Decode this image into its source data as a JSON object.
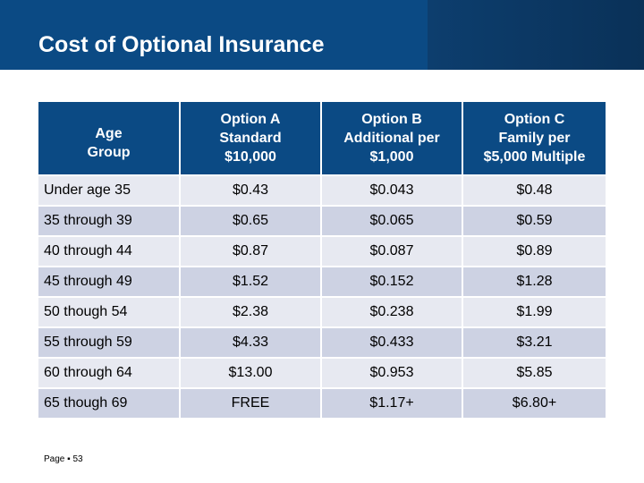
{
  "slide": {
    "title": "Cost of Optional Insurance",
    "page_label": "Page ▪ 53"
  },
  "table": {
    "headers": [
      {
        "lines": [
          "Age",
          "Group"
        ]
      },
      {
        "lines": [
          "Option A",
          "Standard",
          "$10,000"
        ]
      },
      {
        "lines": [
          "Option B",
          "Additional per",
          "$1,000"
        ]
      },
      {
        "lines": [
          "Option C",
          "Family per",
          "$5,000 Multiple"
        ]
      }
    ],
    "rows": [
      {
        "age": "Under age 35",
        "a": "$0.43",
        "b": "$0.043",
        "c": "$0.48"
      },
      {
        "age": "35 through 39",
        "a": "$0.65",
        "b": "$0.065",
        "c": "$0.59"
      },
      {
        "age": "40 through 44",
        "a": "$0.87",
        "b": "$0.087",
        "c": "$0.89"
      },
      {
        "age": "45 through 49",
        "a": "$1.52",
        "b": "$0.152",
        "c": "$1.28"
      },
      {
        "age": "50 though 54",
        "a": "$2.38",
        "b": "$0.238",
        "c": "$1.99"
      },
      {
        "age": "55 through 59",
        "a": "$4.33",
        "b": "$0.433",
        "c": "$3.21"
      },
      {
        "age": "60 through 64",
        "a": "$13.00",
        "b": "$0.953",
        "c": "$5.85"
      },
      {
        "age": "65 though 69",
        "a": "FREE",
        "b": "$1.17+",
        "c": "$6.80+"
      }
    ]
  },
  "colors": {
    "banner": "#0b4a84",
    "header_fill": "#0b4a84",
    "row_light": "#e7e9f1",
    "row_dark": "#cdd2e3"
  }
}
